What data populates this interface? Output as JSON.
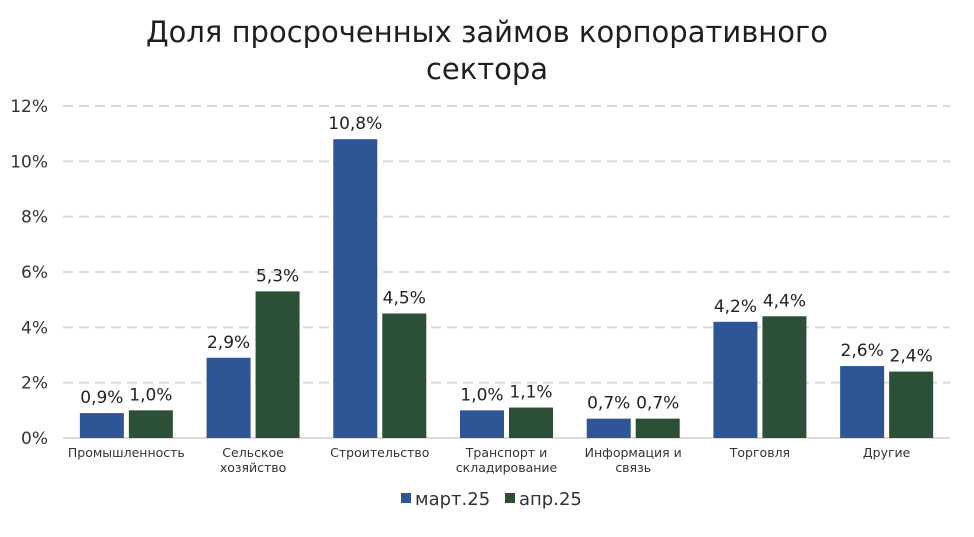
{
  "chart_data": {
    "type": "bar",
    "title": "Доля просроченных займов корпоративного сектора",
    "title_lines": [
      "Доля просроченных займов корпоративного",
      "сектора"
    ],
    "categories": [
      [
        "Промышленность"
      ],
      [
        "Сельское",
        "хозяйство"
      ],
      [
        "Строительство"
      ],
      [
        "Транспорт и",
        "складирование"
      ],
      [
        "Информация и",
        "связь"
      ],
      [
        "Торговля"
      ],
      [
        "Другие"
      ]
    ],
    "series": [
      {
        "name": "март.25",
        "color": "#2e5596",
        "values": [
          0.9,
          2.9,
          10.8,
          1.0,
          0.7,
          4.2,
          2.6
        ],
        "labels": [
          "0,9%",
          "2,9%",
          "10,8%",
          "1,0%",
          "0,7%",
          "4,2%",
          "2,6%"
        ]
      },
      {
        "name": "апр.25",
        "color": "#2b5036",
        "values": [
          1.0,
          5.3,
          4.5,
          1.1,
          0.7,
          4.4,
          2.4
        ],
        "labels": [
          "1,0%",
          "5,3%",
          "4,5%",
          "1,1%",
          "0,7%",
          "4,4%",
          "2,4%"
        ]
      }
    ],
    "ylim": [
      0,
      12
    ],
    "yticks": [
      0,
      2,
      4,
      6,
      8,
      10,
      12
    ],
    "ytick_labels": [
      "0%",
      "2%",
      "4%",
      "6%",
      "8%",
      "10%",
      "12%"
    ],
    "grid": true,
    "legend_position": "bottom"
  }
}
